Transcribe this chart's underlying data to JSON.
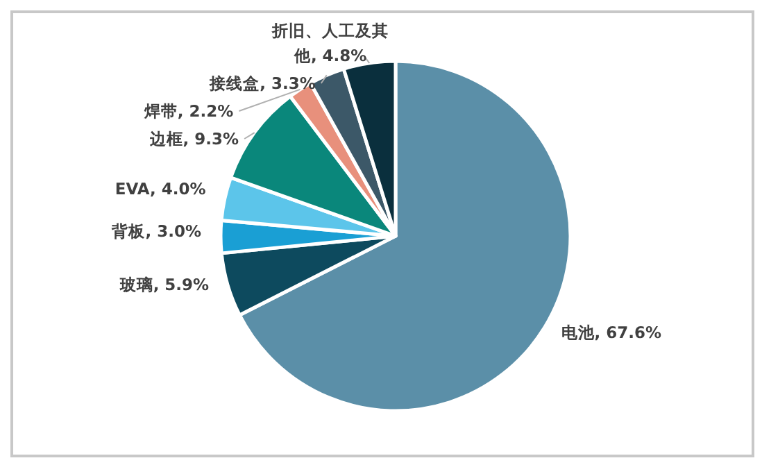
{
  "chart_data": {
    "type": "pie",
    "categories": [
      "电池",
      "玻璃",
      "背板",
      "EVA",
      "边框",
      "焊带",
      "接线盒",
      "折旧、人工及其他"
    ],
    "values": [
      67.6,
      5.9,
      3.0,
      4.0,
      9.3,
      2.2,
      3.3,
      4.8
    ],
    "value_labels": [
      "67.6%",
      "5.9%",
      "3.0%",
      "4.0%",
      "9.3%",
      "2.2%",
      "3.3%",
      "4.8%"
    ],
    "colors": [
      "#5b8fa8",
      "#0d4a5e",
      "#1a9fd4",
      "#5cc5ea",
      "#0a877b",
      "#e8907c",
      "#3c5868",
      "#0a2f3d"
    ],
    "legend": false
  }
}
